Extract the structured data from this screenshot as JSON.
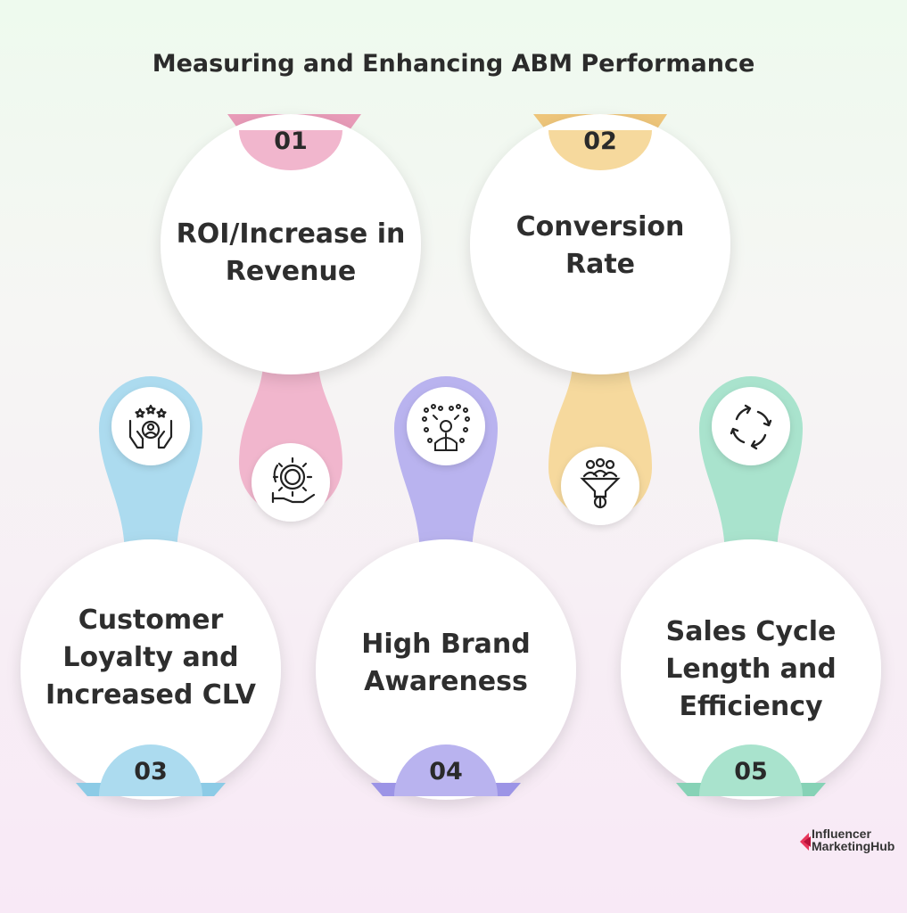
{
  "title": "Measuring and Enhancing ABM Performance",
  "items": [
    {
      "number": "01",
      "label": "ROI/Increase in Revenue",
      "line1": "ROI/Increase in",
      "line2": "Revenue",
      "line3": "",
      "color": "#f1b6cd",
      "icon": "revenue-gear-hand-icon"
    },
    {
      "number": "02",
      "label": "Conversion Rate",
      "line1": "Conversion",
      "line2": "Rate",
      "line3": "",
      "color": "#f6d99d",
      "icon": "conversion-funnel-icon"
    },
    {
      "number": "03",
      "label": "Customer Loyalty and Increased CLV",
      "line1": "Customer",
      "line2": "Loyalty and",
      "line3": "Increased CLV",
      "color": "#acdbef",
      "icon": "loyalty-hands-stars-icon"
    },
    {
      "number": "04",
      "label": "High Brand Awareness",
      "line1": "High Brand",
      "line2": "Awareness",
      "line3": "",
      "color": "#b9b3ef",
      "icon": "brand-awareness-person-icon"
    },
    {
      "number": "05",
      "label": "Sales Cycle Length and Efficiency",
      "line1": "Sales Cycle",
      "line2": "Length and",
      "line3": "Efficiency",
      "color": "#a9e3cd",
      "icon": "cycle-arrows-icon"
    }
  ],
  "brand": {
    "line1": "Influencer",
    "line2": "MarketingHub",
    "accent": "#e8365b"
  }
}
